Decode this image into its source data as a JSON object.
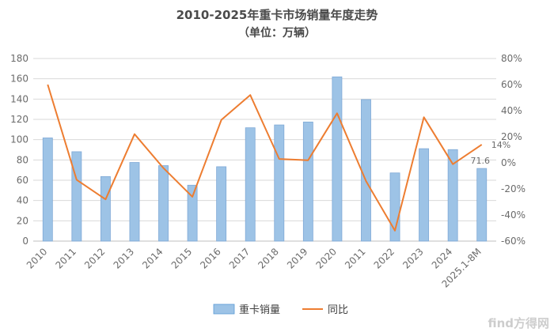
{
  "chart_data": {
    "type": "bar",
    "title": "2010-2025年重卡市场销量年度走势",
    "subtitle": "（单位：万辆）",
    "categories": [
      "2010",
      "2011",
      "2012",
      "2013",
      "2014",
      "2015",
      "2016",
      "2017",
      "2018",
      "2019",
      "2020",
      "2011",
      "2022",
      "2023",
      "2024",
      "2025.1-8M"
    ],
    "series": [
      {
        "name": "重卡销量",
        "type": "bar",
        "axis": "left",
        "color": "#9dc3e6",
        "values": [
          101.7,
          88.1,
          63.6,
          77.5,
          74.4,
          55.1,
          73.3,
          111.7,
          114.5,
          117.4,
          161.9,
          139.5,
          67.2,
          91.1,
          90.2,
          71.6
        ]
      },
      {
        "name": "同比",
        "type": "line",
        "axis": "right",
        "color": "#ed7d31",
        "values": [
          60,
          -13,
          -28,
          22,
          -4,
          -26,
          33,
          52,
          3,
          2,
          38,
          -14,
          -52,
          35,
          -1,
          14
        ]
      }
    ],
    "y_left": {
      "min": 0,
      "max": 180,
      "step": 20,
      "ticks": [
        "0",
        "20",
        "40",
        "60",
        "80",
        "100",
        "120",
        "140",
        "160",
        "180"
      ]
    },
    "y_right": {
      "min": -60,
      "max": 80,
      "step": 20,
      "ticks": [
        "-60%",
        "-40%",
        "-20%",
        "0%",
        "20%",
        "40%",
        "60%",
        "80%"
      ]
    },
    "annotations": [
      {
        "series": "重卡销量",
        "index": 15,
        "text": "71.6"
      },
      {
        "series": "同比",
        "index": 15,
        "text": "14%"
      }
    ],
    "grid": true,
    "legend": "bottom",
    "legend_labels": [
      "重卡销量",
      "同比"
    ]
  },
  "watermark": "find方得网"
}
